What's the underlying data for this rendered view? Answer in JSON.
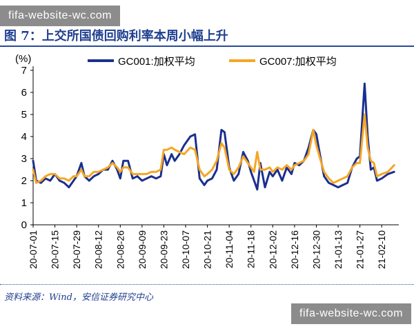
{
  "watermark_top": "fifa-website-wc.com",
  "watermark_bottom": "fifa-website-wc.com",
  "figure_title": "图 7：上交所国债回购利率本周小幅上升",
  "source_note": "资料来源：Wind，安信证券研究中心",
  "colors": {
    "series_1": "#1a2f8f",
    "series_2": "#f5a623",
    "axis": "#000000"
  },
  "chart_data": {
    "type": "line",
    "title": "",
    "ylabel": "(%)",
    "xlabel": "",
    "ylim": [
      0,
      7
    ],
    "yticks": [
      0,
      1,
      2,
      3,
      4,
      5,
      6,
      7
    ],
    "xlim": [
      "2020-07-01",
      "2021-02-21"
    ],
    "x_tick_labels": [
      "20-07-01",
      "20-07-15",
      "20-07-29",
      "20-08-12",
      "20-08-26",
      "20-09-09",
      "20-09-23",
      "20-10-07",
      "20-10-21",
      "20-11-04",
      "20-11-18",
      "20-12-02",
      "20-12-16",
      "20-12-30",
      "21-01-13",
      "21-01-27",
      "21-02-10"
    ],
    "legend_position": "top",
    "grid": false,
    "series": [
      {
        "name": "GC001:加权平均",
        "color": "#1a2f8f",
        "points": [
          [
            "2020-07-01",
            2.9
          ],
          [
            "2020-07-03",
            2.0
          ],
          [
            "2020-07-06",
            1.9
          ],
          [
            "2020-07-09",
            2.1
          ],
          [
            "2020-07-12",
            2.0
          ],
          [
            "2020-07-15",
            2.3
          ],
          [
            "2020-07-18",
            2.0
          ],
          [
            "2020-07-21",
            1.9
          ],
          [
            "2020-07-24",
            1.7
          ],
          [
            "2020-07-27",
            2.0
          ],
          [
            "2020-07-29",
            2.2
          ],
          [
            "2020-08-01",
            2.8
          ],
          [
            "2020-08-03",
            2.2
          ],
          [
            "2020-08-06",
            2.0
          ],
          [
            "2020-08-09",
            2.2
          ],
          [
            "2020-08-12",
            2.3
          ],
          [
            "2020-08-15",
            2.5
          ],
          [
            "2020-08-18",
            2.5
          ],
          [
            "2020-08-21",
            2.9
          ],
          [
            "2020-08-24",
            2.5
          ],
          [
            "2020-08-26",
            2.1
          ],
          [
            "2020-08-28",
            2.9
          ],
          [
            "2020-08-31",
            2.9
          ],
          [
            "2020-09-03",
            2.1
          ],
          [
            "2020-09-06",
            2.2
          ],
          [
            "2020-09-09",
            2.0
          ],
          [
            "2020-09-12",
            2.1
          ],
          [
            "2020-09-15",
            2.2
          ],
          [
            "2020-09-18",
            2.1
          ],
          [
            "2020-09-21",
            2.2
          ],
          [
            "2020-09-23",
            3.2
          ],
          [
            "2020-09-25",
            2.7
          ],
          [
            "2020-09-28",
            3.2
          ],
          [
            "2020-09-30",
            2.9
          ],
          [
            "2020-10-03",
            3.2
          ],
          [
            "2020-10-06",
            3.6
          ],
          [
            "2020-10-10",
            4.0
          ],
          [
            "2020-10-13",
            4.1
          ],
          [
            "2020-10-16",
            2.1
          ],
          [
            "2020-10-19",
            1.8
          ],
          [
            "2020-10-21",
            2.0
          ],
          [
            "2020-10-24",
            2.1
          ],
          [
            "2020-10-27",
            2.5
          ],
          [
            "2020-10-30",
            4.3
          ],
          [
            "2020-11-01",
            4.2
          ],
          [
            "2020-11-04",
            2.6
          ],
          [
            "2020-11-07",
            2.0
          ],
          [
            "2020-11-10",
            2.3
          ],
          [
            "2020-11-13",
            3.3
          ],
          [
            "2020-11-16",
            2.9
          ],
          [
            "2020-11-18",
            2.4
          ],
          [
            "2020-11-20",
            2.0
          ],
          [
            "2020-11-22",
            1.6
          ],
          [
            "2020-11-24",
            2.8
          ],
          [
            "2020-11-27",
            1.7
          ],
          [
            "2020-11-30",
            2.4
          ],
          [
            "2020-12-02",
            2.2
          ],
          [
            "2020-12-05",
            2.5
          ],
          [
            "2020-12-08",
            2.0
          ],
          [
            "2020-12-11",
            2.6
          ],
          [
            "2020-12-14",
            2.3
          ],
          [
            "2020-12-16",
            2.8
          ],
          [
            "2020-12-19",
            2.7
          ],
          [
            "2020-12-22",
            2.9
          ],
          [
            "2020-12-25",
            3.5
          ],
          [
            "2020-12-28",
            4.3
          ],
          [
            "2020-12-30",
            4.1
          ],
          [
            "2021-01-01",
            3.3
          ],
          [
            "2021-01-04",
            2.2
          ],
          [
            "2021-01-07",
            1.9
          ],
          [
            "2021-01-10",
            1.8
          ],
          [
            "2021-01-13",
            1.7
          ],
          [
            "2021-01-16",
            1.8
          ],
          [
            "2021-01-19",
            1.9
          ],
          [
            "2021-01-22",
            2.6
          ],
          [
            "2021-01-25",
            3.0
          ],
          [
            "2021-01-27",
            3.1
          ],
          [
            "2021-01-30",
            6.4
          ],
          [
            "2021-02-01",
            4.0
          ],
          [
            "2021-02-03",
            2.5
          ],
          [
            "2021-02-05",
            2.6
          ],
          [
            "2021-02-07",
            2.0
          ],
          [
            "2021-02-10",
            2.1
          ],
          [
            "2021-02-14",
            2.3
          ],
          [
            "2021-02-18",
            2.4
          ]
        ]
      },
      {
        "name": "GC007:加权平均",
        "color": "#f5a623",
        "points": [
          [
            "2020-07-01",
            2.5
          ],
          [
            "2020-07-03",
            1.9
          ],
          [
            "2020-07-06",
            2.0
          ],
          [
            "2020-07-09",
            2.2
          ],
          [
            "2020-07-12",
            2.3
          ],
          [
            "2020-07-15",
            2.3
          ],
          [
            "2020-07-18",
            2.1
          ],
          [
            "2020-07-21",
            2.1
          ],
          [
            "2020-07-24",
            2.0
          ],
          [
            "2020-07-27",
            2.2
          ],
          [
            "2020-07-29",
            2.2
          ],
          [
            "2020-08-01",
            2.5
          ],
          [
            "2020-08-03",
            2.2
          ],
          [
            "2020-08-06",
            2.2
          ],
          [
            "2020-08-09",
            2.4
          ],
          [
            "2020-08-12",
            2.4
          ],
          [
            "2020-08-15",
            2.5
          ],
          [
            "2020-08-18",
            2.6
          ],
          [
            "2020-08-21",
            2.8
          ],
          [
            "2020-08-24",
            2.6
          ],
          [
            "2020-08-26",
            2.4
          ],
          [
            "2020-08-28",
            2.6
          ],
          [
            "2020-08-31",
            2.6
          ],
          [
            "2020-09-03",
            2.3
          ],
          [
            "2020-09-06",
            2.3
          ],
          [
            "2020-09-09",
            2.3
          ],
          [
            "2020-09-12",
            2.3
          ],
          [
            "2020-09-15",
            2.4
          ],
          [
            "2020-09-18",
            2.4
          ],
          [
            "2020-09-21",
            2.5
          ],
          [
            "2020-09-23",
            3.4
          ],
          [
            "2020-09-25",
            3.4
          ],
          [
            "2020-09-28",
            3.5
          ],
          [
            "2020-09-30",
            3.4
          ],
          [
            "2020-10-03",
            3.3
          ],
          [
            "2020-10-06",
            3.2
          ],
          [
            "2020-10-10",
            3.5
          ],
          [
            "2020-10-13",
            3.4
          ],
          [
            "2020-10-16",
            2.5
          ],
          [
            "2020-10-19",
            2.2
          ],
          [
            "2020-10-21",
            2.3
          ],
          [
            "2020-10-24",
            2.5
          ],
          [
            "2020-10-27",
            2.9
          ],
          [
            "2020-10-30",
            3.7
          ],
          [
            "2020-11-01",
            3.5
          ],
          [
            "2020-11-04",
            2.5
          ],
          [
            "2020-11-07",
            2.3
          ],
          [
            "2020-11-10",
            2.6
          ],
          [
            "2020-11-13",
            3.1
          ],
          [
            "2020-11-16",
            2.8
          ],
          [
            "2020-11-18",
            2.6
          ],
          [
            "2020-11-20",
            2.4
          ],
          [
            "2020-11-22",
            3.3
          ],
          [
            "2020-11-24",
            2.5
          ],
          [
            "2020-11-27",
            2.5
          ],
          [
            "2020-11-30",
            2.6
          ],
          [
            "2020-12-02",
            2.4
          ],
          [
            "2020-12-05",
            2.6
          ],
          [
            "2020-12-08",
            2.5
          ],
          [
            "2020-12-11",
            2.7
          ],
          [
            "2020-12-14",
            2.5
          ],
          [
            "2020-12-16",
            2.7
          ],
          [
            "2020-12-19",
            2.8
          ],
          [
            "2020-12-22",
            2.9
          ],
          [
            "2020-12-25",
            3.2
          ],
          [
            "2020-12-28",
            4.3
          ],
          [
            "2020-12-30",
            3.6
          ],
          [
            "2021-01-01",
            3.1
          ],
          [
            "2021-01-04",
            2.4
          ],
          [
            "2021-01-07",
            2.1
          ],
          [
            "2021-01-10",
            1.9
          ],
          [
            "2021-01-13",
            2.0
          ],
          [
            "2021-01-16",
            2.1
          ],
          [
            "2021-01-19",
            2.2
          ],
          [
            "2021-01-22",
            2.6
          ],
          [
            "2021-01-25",
            2.8
          ],
          [
            "2021-01-27",
            2.8
          ],
          [
            "2021-01-30",
            5.0
          ],
          [
            "2021-02-01",
            3.5
          ],
          [
            "2021-02-03",
            2.9
          ],
          [
            "2021-02-05",
            2.8
          ],
          [
            "2021-02-07",
            2.2
          ],
          [
            "2021-02-10",
            2.3
          ],
          [
            "2021-02-14",
            2.4
          ],
          [
            "2021-02-18",
            2.7
          ]
        ]
      }
    ]
  }
}
